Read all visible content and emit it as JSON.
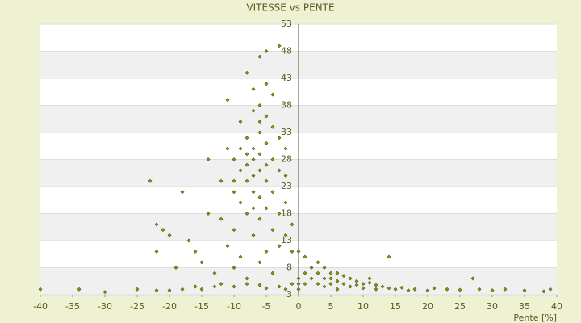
{
  "chart_data": {
    "type": "scatter",
    "title": "VITESSE vs PENTE",
    "x_label": "Pente [%]",
    "color": "#8a9a10",
    "x": [
      -40,
      -34,
      -30,
      -25,
      -22,
      -20,
      -18,
      -16,
      -15,
      -13,
      -12,
      -10,
      -8,
      -6,
      -5,
      -3,
      -2,
      -1,
      0,
      0,
      0,
      -23,
      -22,
      -21,
      -22,
      -20,
      -19,
      -18,
      -17,
      -16,
      -15,
      -14,
      -14,
      -13,
      -12,
      -12,
      -11,
      -11,
      -10,
      -10,
      -10,
      -10,
      -9,
      -9,
      -9,
      -9,
      -8,
      -8,
      -8,
      -8,
      -8,
      -8,
      -7,
      -7,
      -7,
      -7,
      -7,
      -7,
      -7,
      -6,
      -6,
      -6,
      -6,
      -6,
      -6,
      -6,
      -6,
      -5,
      -5,
      -5,
      -5,
      -5,
      -5,
      -5,
      -4,
      -4,
      -4,
      -4,
      -4,
      -4,
      -3,
      -3,
      -3,
      -3,
      -3,
      -2,
      -2,
      -2,
      -1,
      -1,
      -2,
      -9,
      -8,
      -7,
      -6,
      -5,
      -10,
      -11,
      0,
      1,
      1,
      2,
      2,
      3,
      3,
      4,
      4,
      4,
      5,
      5,
      5,
      6,
      6,
      6,
      7,
      7,
      8,
      8,
      9,
      9,
      10,
      10,
      11,
      12,
      12,
      13,
      14,
      15,
      16,
      17,
      18,
      20,
      21,
      23,
      25,
      27,
      28,
      30,
      32,
      35,
      38,
      39,
      14,
      11,
      3,
      1
    ],
    "values": [
      4,
      4,
      3.5,
      4,
      3.8,
      3.8,
      4,
      4.5,
      4,
      4.5,
      5,
      4.5,
      5,
      4.8,
      4.2,
      4.5,
      4,
      5,
      4,
      5,
      6,
      24,
      16,
      15,
      11,
      14,
      8,
      22,
      13,
      11,
      9,
      28,
      18,
      7,
      17,
      24,
      12,
      39,
      28,
      22,
      15,
      8,
      35,
      26,
      20,
      10,
      44,
      32,
      27,
      24,
      18,
      6,
      41,
      37,
      30,
      28,
      25,
      22,
      14,
      47,
      38,
      33,
      29,
      26,
      21,
      17,
      9,
      48,
      36,
      31,
      27,
      24,
      19,
      11,
      40,
      34,
      28,
      22,
      15,
      7,
      49,
      32,
      26,
      18,
      12,
      30,
      20,
      14,
      16,
      11,
      25,
      30,
      29,
      19,
      35,
      42,
      24,
      30,
      11,
      10,
      7,
      8,
      6,
      7,
      5,
      8,
      6,
      4.5,
      7,
      6,
      5,
      7,
      5.5,
      4,
      6.5,
      5,
      6,
      4.5,
      5.5,
      4.8,
      5,
      4.2,
      5.2,
      4.8,
      4,
      4.5,
      4.2,
      4,
      4.3,
      3.8,
      4,
      3.8,
      4.2,
      4,
      3.9,
      6,
      4,
      3.8,
      4,
      3.8,
      3.6,
      4,
      10,
      6,
      9,
      5
    ],
    "xlim": [
      -40,
      40
    ],
    "ylim": [
      3,
      53
    ],
    "xticks": [
      -40,
      -35,
      -30,
      -25,
      -20,
      -15,
      -10,
      -5,
      0,
      5,
      10,
      15,
      20,
      25,
      30,
      35,
      40
    ],
    "yticks": [
      3,
      8,
      13,
      18,
      23,
      28,
      33,
      38,
      43,
      48,
      53
    ],
    "grid": true
  }
}
